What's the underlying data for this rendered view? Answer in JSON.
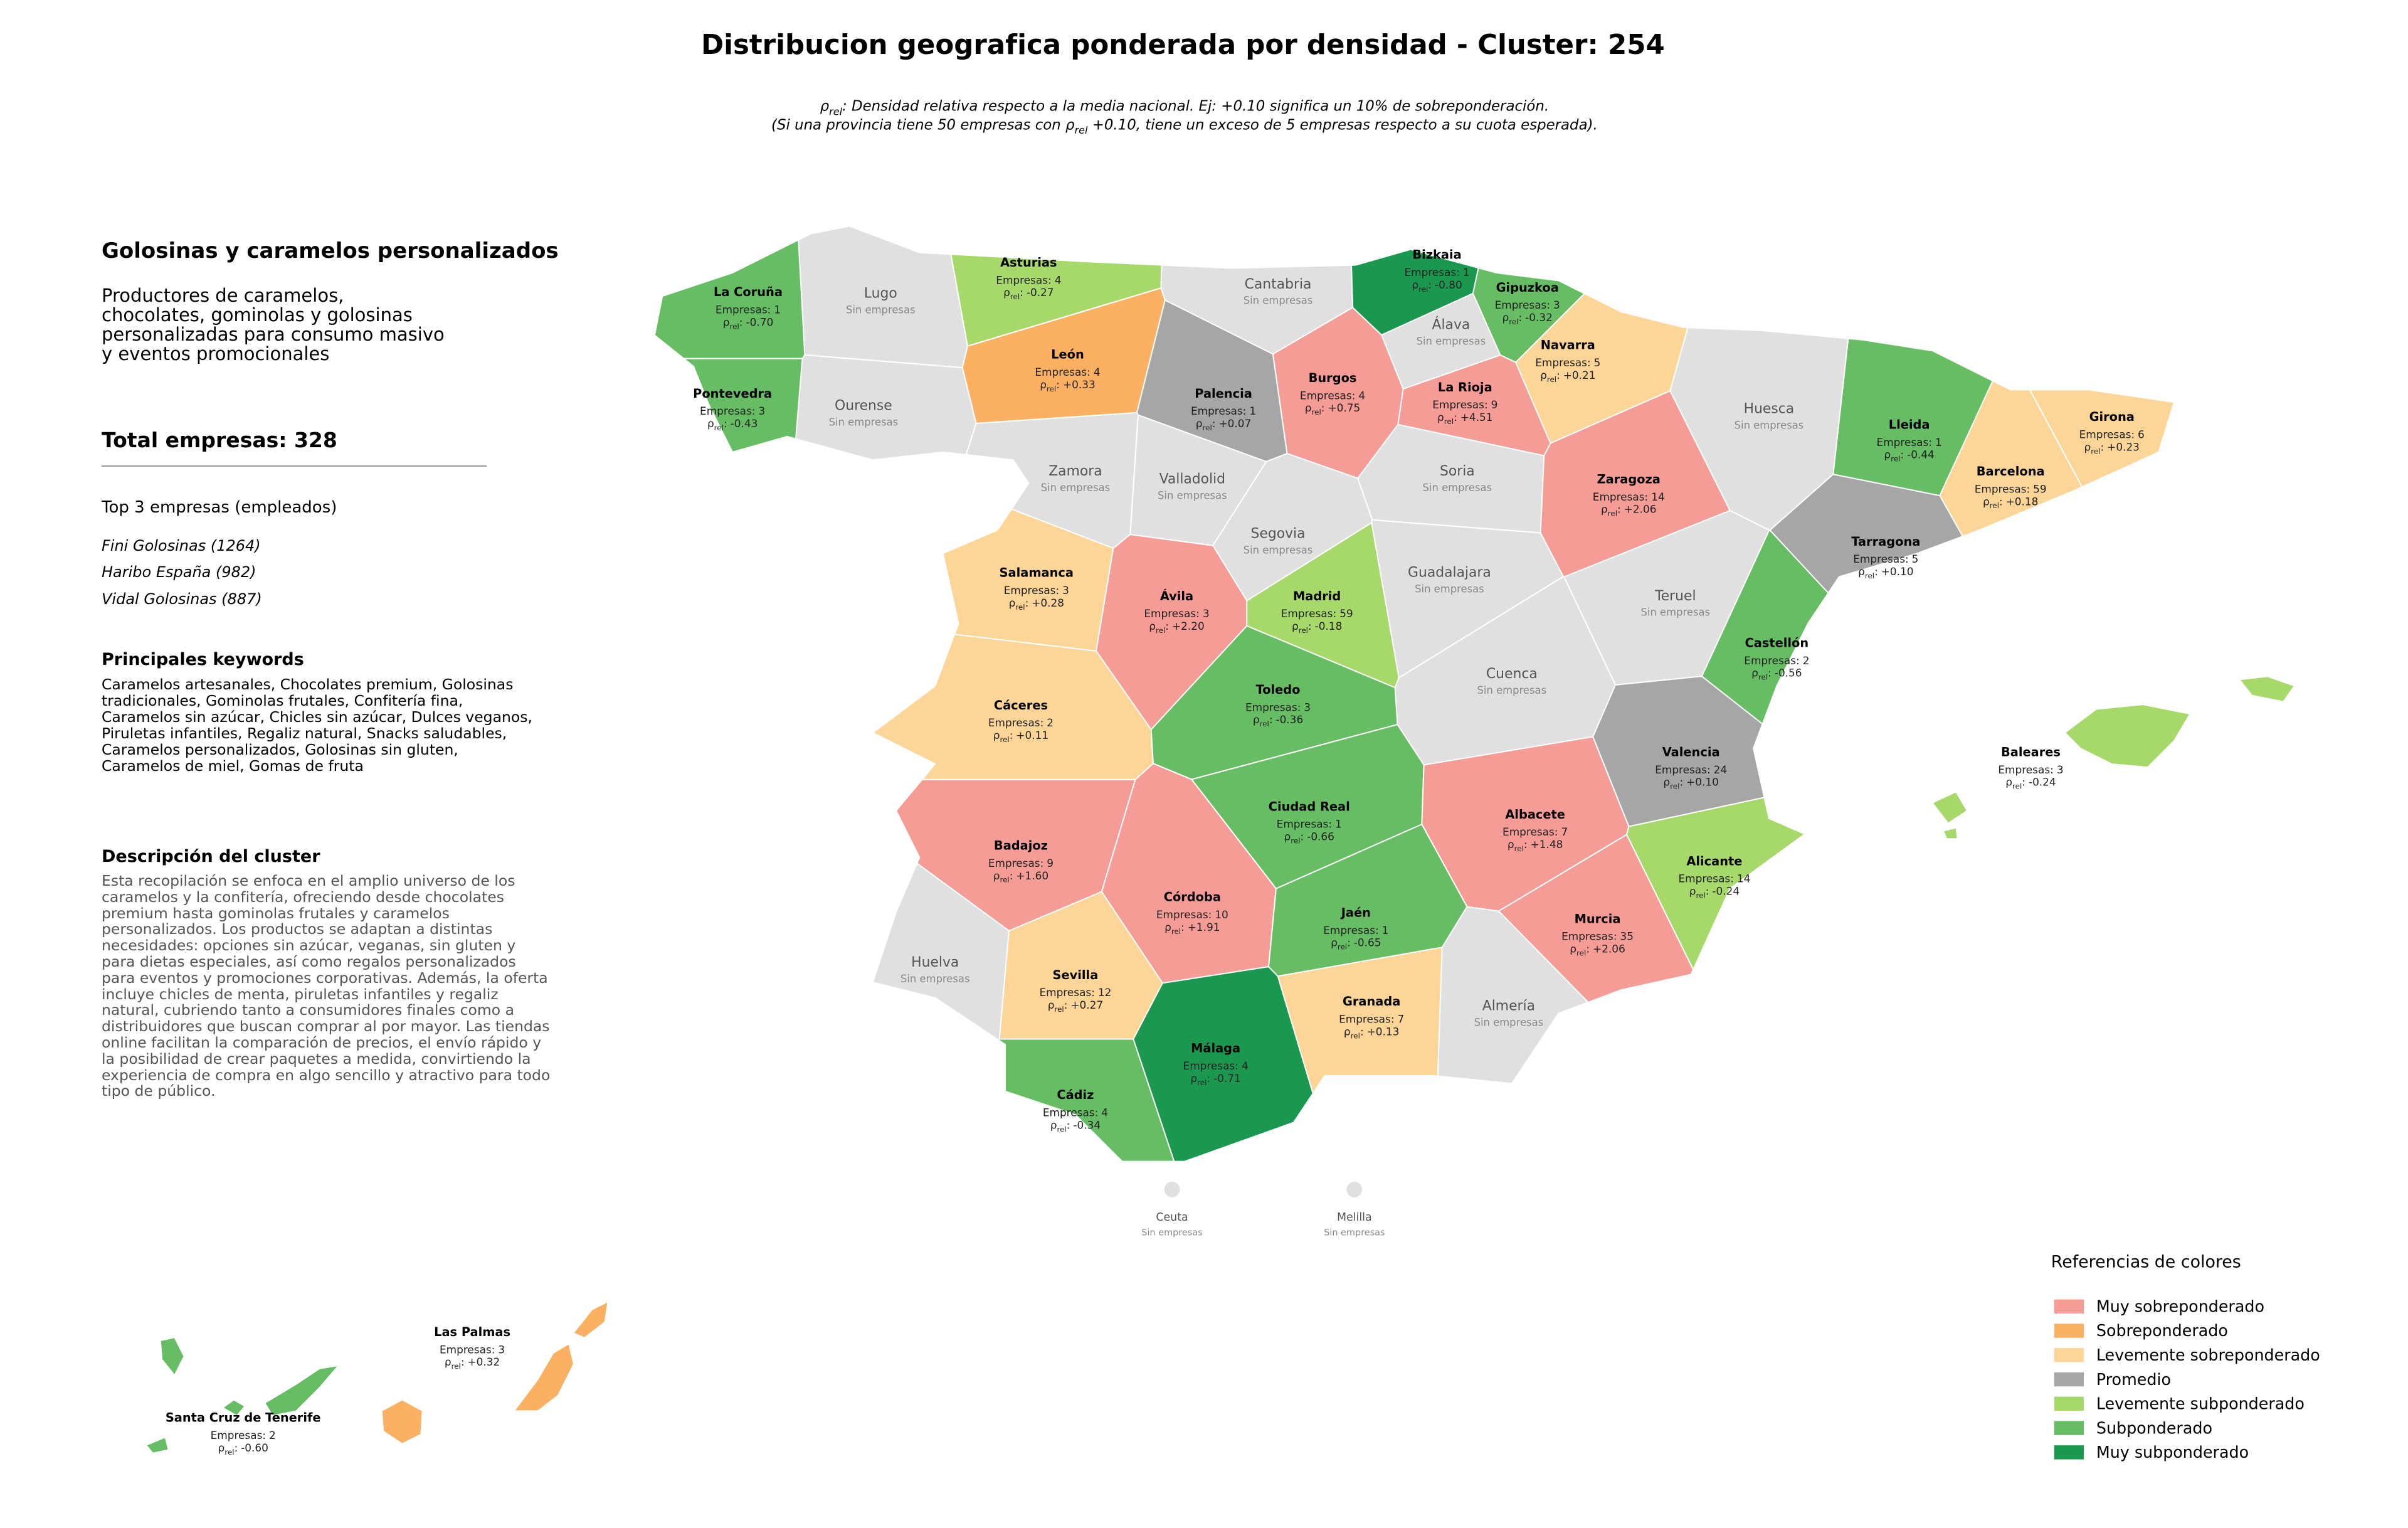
{
  "title": "Distribucion geografica ponderada por densidad - Cluster: 254",
  "note": {
    "rho_symbol": "ρ",
    "rho_sub": "rel",
    "line1": ": Densidad relativa respecto a la media nacional. Ej: +0.10 significa un 10% de sobreponderación.",
    "line2_before": "(Si una provincia tiene 50 empresas con ",
    "line2_after": " +0.10, tiene un exceso de 5 empresas respecto a su cuota esperada)."
  },
  "sidebar": {
    "heading": "Golosinas y caramelos personalizados",
    "summary": "Productores de caramelos, chocolates, gominolas y golosinas personalizadas para consumo masivo y eventos promocionales",
    "total_label": "Total empresas:",
    "total": 328,
    "top_title": "Top 3 empresas (empleados)",
    "top_companies": [
      "Fini Golosinas (1264)",
      "Haribo España (982)",
      "Vidal Golosinas (887)"
    ],
    "keywords_title": "Principales keywords",
    "keywords": "Caramelos artesanales, Chocolates premium, Golosinas tradicionales, Gominolas frutales, Confitería fina, Caramelos sin azúcar, Chicles sin azúcar, Dulces veganos, Piruletas infantiles, Regaliz natural, Snacks saludables, Caramelos personalizados, Golosinas sin gluten, Caramelos de miel, Gomas de fruta",
    "description_title": "Descripción del cluster",
    "description": "Esta recopilación se enfoca en el amplio universo de los caramelos y la confitería, ofreciendo desde chocolates premium hasta gominolas frutales y caramelos personalizados. Los productos se adaptan a distintas necesidades: opciones sin azúcar, veganas, sin gluten y para dietas especiales, así como regalos personalizados para eventos y promociones corporativas. Además, la oferta incluye chicles de menta, piruletas infantiles y regaliz natural, cubriendo tanto a consumidores finales como a distribuidores que buscan comprar al por mayor. Las tiendas online facilitan la comparación de precios, el envío rápido y la posibilidad de crear paquetes a medida, convirtiendo la experiencia de compra en algo sencillo y atractivo para todo tipo de público."
  },
  "map": {
    "empresas_label": "Empresas:",
    "rho_sep": ":",
    "no_companies_label": "Sin empresas",
    "provinces": [
      {
        "name": "La Coruña",
        "empresas": 1,
        "rho": "-0.70",
        "color": "#66bd63"
      },
      {
        "name": "Pontevedra",
        "empresas": 3,
        "rho": "-0.43",
        "color": "#66bd63"
      },
      {
        "name": "Lugo",
        "color": "#e0e0e0"
      },
      {
        "name": "Ourense",
        "color": "#e0e0e0"
      },
      {
        "name": "Asturias",
        "empresas": 4,
        "rho": "-0.27",
        "color": "#a6d96a"
      },
      {
        "name": "León",
        "empresas": 4,
        "rho": "+0.33",
        "color": "#fbb062"
      },
      {
        "name": "Zamora",
        "color": "#e0e0e0"
      },
      {
        "name": "Cantabria",
        "color": "#e0e0e0"
      },
      {
        "name": "Palencia",
        "empresas": 1,
        "rho": "+0.07",
        "color": "#a6a6a6"
      },
      {
        "name": "Valladolid",
        "color": "#e0e0e0"
      },
      {
        "name": "Burgos",
        "empresas": 4,
        "rho": "+0.75",
        "color": "#f59c96"
      },
      {
        "name": "Bizkaia",
        "empresas": 1,
        "rho": "-0.80",
        "color": "#1a9850"
      },
      {
        "name": "Gipuzkoa",
        "empresas": 3,
        "rho": "-0.32",
        "color": "#66bd63"
      },
      {
        "name": "Álava",
        "color": "#e0e0e0"
      },
      {
        "name": "La Rioja",
        "empresas": 9,
        "rho": "+4.51",
        "color": "#f59c96"
      },
      {
        "name": "Navarra",
        "empresas": 5,
        "rho": "+0.21",
        "color": "#fcd597"
      },
      {
        "name": "Soria",
        "color": "#e0e0e0"
      },
      {
        "name": "Segovia",
        "color": "#e0e0e0"
      },
      {
        "name": "Salamanca",
        "empresas": 3,
        "rho": "+0.28",
        "color": "#fcd597"
      },
      {
        "name": "Ávila",
        "empresas": 3,
        "rho": "+2.20",
        "color": "#f59c96"
      },
      {
        "name": "Madrid",
        "empresas": 59,
        "rho": "-0.18",
        "color": "#a6d96a"
      },
      {
        "name": "Guadalajara",
        "color": "#e0e0e0"
      },
      {
        "name": "Huesca",
        "color": "#e0e0e0"
      },
      {
        "name": "Zaragoza",
        "empresas": 14,
        "rho": "+2.06",
        "color": "#f59c96"
      },
      {
        "name": "Lleida",
        "empresas": 1,
        "rho": "-0.44",
        "color": "#66bd63"
      },
      {
        "name": "Girona",
        "empresas": 6,
        "rho": "+0.23",
        "color": "#fcd597"
      },
      {
        "name": "Barcelona",
        "empresas": 59,
        "rho": "+0.18",
        "color": "#fcd597"
      },
      {
        "name": "Tarragona",
        "empresas": 5,
        "rho": "+0.10",
        "color": "#a6a6a6"
      },
      {
        "name": "Teruel",
        "color": "#e0e0e0"
      },
      {
        "name": "Castellón",
        "empresas": 2,
        "rho": "-0.56",
        "color": "#66bd63"
      },
      {
        "name": "Cuenca",
        "color": "#e0e0e0"
      },
      {
        "name": "Cáceres",
        "empresas": 2,
        "rho": "+0.11",
        "color": "#fcd597"
      },
      {
        "name": "Toledo",
        "empresas": 3,
        "rho": "-0.36",
        "color": "#66bd63"
      },
      {
        "name": "Ciudad Real",
        "empresas": 1,
        "rho": "-0.66",
        "color": "#66bd63"
      },
      {
        "name": "Valencia",
        "empresas": 24,
        "rho": "+0.10",
        "color": "#a6a6a6"
      },
      {
        "name": "Albacete",
        "empresas": 7,
        "rho": "+1.48",
        "color": "#f59c96"
      },
      {
        "name": "Alicante",
        "empresas": 14,
        "rho": "-0.24",
        "color": "#a6d96a"
      },
      {
        "name": "Badajoz",
        "empresas": 9,
        "rho": "+1.60",
        "color": "#f59c96"
      },
      {
        "name": "Córdoba",
        "empresas": 10,
        "rho": "+1.91",
        "color": "#f59c96"
      },
      {
        "name": "Jaén",
        "empresas": 1,
        "rho": "-0.65",
        "color": "#66bd63"
      },
      {
        "name": "Murcia",
        "empresas": 35,
        "rho": "+2.06",
        "color": "#f59c96"
      },
      {
        "name": "Huelva",
        "color": "#e0e0e0"
      },
      {
        "name": "Sevilla",
        "empresas": 12,
        "rho": "+0.27",
        "color": "#fcd597"
      },
      {
        "name": "Granada",
        "empresas": 7,
        "rho": "+0.13",
        "color": "#fcd597"
      },
      {
        "name": "Almería",
        "color": "#e0e0e0"
      },
      {
        "name": "Málaga",
        "empresas": 4,
        "rho": "-0.71",
        "color": "#1a9850"
      },
      {
        "name": "Cádiz",
        "empresas": 4,
        "rho": "-0.34",
        "color": "#66bd63"
      },
      {
        "name": "Baleares",
        "empresas": 3,
        "rho": "-0.24",
        "color": "#a6d96a"
      },
      {
        "name": "Las Palmas",
        "empresas": 3,
        "rho": "+0.32",
        "color": "#fbb062"
      },
      {
        "name": "Santa Cruz de Tenerife",
        "empresas": 2,
        "rho": "-0.60",
        "color": "#66bd63"
      },
      {
        "name": "Ceuta",
        "color": "#e0e0e0"
      },
      {
        "name": "Melilla",
        "color": "#e0e0e0"
      }
    ]
  },
  "legend": {
    "title": "Referencias de colores",
    "items": [
      {
        "name": "Muy sobreponderado",
        "color": "#f59c96"
      },
      {
        "name": "Sobreponderado",
        "color": "#fbb062"
      },
      {
        "name": "Levemente sobreponderado",
        "color": "#fcd597"
      },
      {
        "name": "Promedio",
        "color": "#a6a6a6"
      },
      {
        "name": "Levemente subponderado",
        "color": "#a6d96a"
      },
      {
        "name": "Subponderado",
        "color": "#66bd63"
      },
      {
        "name": "Muy subponderado",
        "color": "#1a9850"
      }
    ]
  }
}
